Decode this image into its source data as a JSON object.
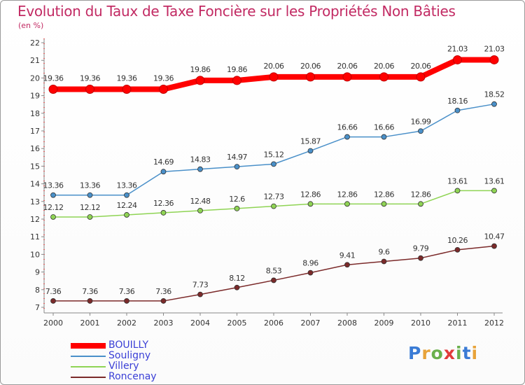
{
  "title": "Evolution du Taux de Taxe Foncière sur les Propriétés Non Bâties",
  "unit": "(en %)",
  "logo": {
    "text": "Proxiti",
    "colors": [
      "#3a7bd5",
      "#e8a33a",
      "#6ab04c",
      "#e23b3b",
      "#6ab04c",
      "#3a7bd5",
      "#e8a33a"
    ]
  },
  "chart_data": {
    "type": "line",
    "title": "Evolution du Taux de Taxe Foncière sur les Propriétés Non Bâties",
    "ylabel": "(en %)",
    "xlabel": "",
    "ylim": [
      7,
      22
    ],
    "yticks": [
      7,
      8,
      9,
      10,
      11,
      12,
      13,
      14,
      15,
      16,
      17,
      18,
      19,
      20,
      21,
      22
    ],
    "x": [
      "2000",
      "2001",
      "2002",
      "2003",
      "2004",
      "2005",
      "2006",
      "2007",
      "2008",
      "2009",
      "2010",
      "2011",
      "2012"
    ],
    "grid": false,
    "legend": "bottom-left",
    "series": [
      {
        "name": "BOUILLY",
        "color": "#ff0000",
        "values": [
          19.36,
          19.36,
          19.36,
          19.36,
          19.86,
          19.86,
          20.06,
          20.06,
          20.06,
          20.06,
          20.06,
          21.03,
          21.03
        ],
        "labels": [
          "19.36",
          "19.36",
          "19.36",
          "19.36",
          "19.86",
          "19.86",
          "20.06",
          "20.06",
          "20.06",
          "20.06",
          "20.06",
          "21.03",
          "21.03"
        ]
      },
      {
        "name": "Souligny",
        "color": "#4a90c9",
        "values": [
          13.36,
          13.36,
          13.36,
          14.69,
          14.83,
          14.97,
          15.12,
          15.87,
          16.66,
          16.66,
          16.99,
          18.16,
          18.52
        ],
        "labels": [
          "13.36",
          "13.36",
          "13.36",
          "14.69",
          "14.83",
          "14.97",
          "15.12",
          "15.87",
          "16.66",
          "16.66",
          "16.99",
          "18.16",
          "18.52"
        ]
      },
      {
        "name": "Villery",
        "color": "#8fd454",
        "values": [
          12.12,
          12.12,
          12.24,
          12.36,
          12.48,
          12.6,
          12.73,
          12.86,
          12.86,
          12.86,
          12.86,
          13.61,
          13.61
        ],
        "labels": [
          "12.12",
          "12.12",
          "12.24",
          "12.36",
          "12.48",
          "12.6",
          "12.73",
          "12.86",
          "12.86",
          "12.86",
          "12.86",
          "13.61",
          "13.61"
        ]
      },
      {
        "name": "Roncenay",
        "color": "#7b2a2a",
        "values": [
          7.36,
          7.36,
          7.36,
          7.36,
          7.73,
          8.12,
          8.53,
          8.96,
          9.41,
          9.6,
          9.79,
          10.26,
          10.47
        ],
        "labels": [
          "7.36",
          "7.36",
          "7.36",
          "7.36",
          "7.73",
          "8.12",
          "8.53",
          "8.96",
          "9.41",
          "9.6",
          "9.79",
          "10.26",
          "10.47"
        ]
      }
    ]
  }
}
